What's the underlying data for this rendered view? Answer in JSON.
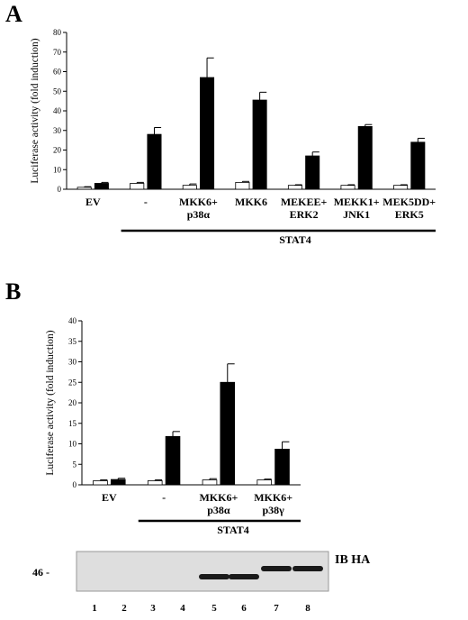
{
  "panels": {
    "a": {
      "letter": "A",
      "stat_label": "STAT4"
    },
    "b": {
      "letter": "B",
      "stat_label": "STAT4"
    }
  },
  "blot": {
    "label": "IB HA",
    "marker": "46 -",
    "lanes": [
      "1",
      "2",
      "3",
      "4",
      "5",
      "6",
      "7",
      "8"
    ],
    "band_presence": [
      0,
      0,
      0,
      0,
      1,
      1,
      1,
      1
    ]
  },
  "colors": {
    "open_bar": "#ffffff",
    "filled_bar": "#000000"
  },
  "chart_data": [
    {
      "type": "bar",
      "panel": "A",
      "ylabel": "Luciferase activity (fold induction)",
      "ylim": [
        0,
        80
      ],
      "yticks": [
        "0",
        "10",
        "20",
        "30",
        "40",
        "50",
        "60",
        "70",
        "80"
      ],
      "categories": [
        [
          "EV"
        ],
        [
          "-"
        ],
        [
          "MKK6+",
          "p38α"
        ],
        [
          "MKK6"
        ],
        [
          "MEKEE+",
          "ERK2"
        ],
        [
          "MEKK1+",
          "JNK1"
        ],
        [
          "MEK5DD+",
          "ERK5"
        ]
      ],
      "series": [
        {
          "fill": "open",
          "values": [
            1,
            3,
            2,
            3.5,
            2,
            2,
            2
          ],
          "errors": [
            0.3,
            0.5,
            0.7,
            0.5,
            0.3,
            0.3,
            0.3
          ]
        },
        {
          "fill": "filled",
          "values": [
            3,
            28,
            57,
            45.5,
            17,
            32,
            24
          ],
          "errors": [
            0.5,
            3.5,
            10,
            4,
            2,
            1,
            2
          ]
        }
      ],
      "grid": false,
      "group_bracket": {
        "from": 1,
        "to": 6,
        "label": "STAT4"
      }
    },
    {
      "type": "bar",
      "panel": "B",
      "ylabel": "Luciferase activity (fold induction)",
      "ylim": [
        0,
        40
      ],
      "yticks": [
        "0",
        "5",
        "10",
        "15",
        "20",
        "25",
        "30",
        "35",
        "40"
      ],
      "categories": [
        [
          "EV"
        ],
        [
          "-"
        ],
        [
          "MKK6+",
          "p38α"
        ],
        [
          "MKK6+",
          "p38γ"
        ]
      ],
      "series": [
        {
          "fill": "open",
          "values": [
            1,
            1,
            1.2,
            1.2
          ],
          "errors": [
            0.2,
            0.2,
            0.3,
            0.2
          ]
        },
        {
          "fill": "filled",
          "values": [
            1.3,
            11.8,
            25,
            8.7
          ],
          "errors": [
            0.3,
            1.2,
            4.5,
            1.8
          ]
        }
      ],
      "grid": false,
      "group_bracket": {
        "from": 1,
        "to": 3,
        "label": "STAT4"
      }
    }
  ]
}
